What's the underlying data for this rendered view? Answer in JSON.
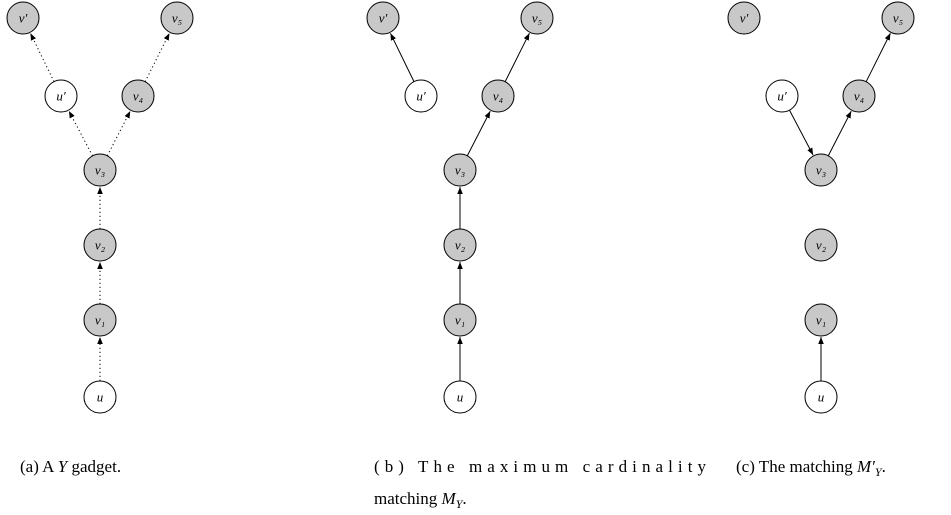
{
  "nodes": [
    {
      "label": "v′",
      "filled": true
    },
    {
      "label": "v₅",
      "filled": true
    },
    {
      "label": "u′",
      "filled": false
    },
    {
      "label": "v₄",
      "filled": true
    },
    {
      "label": "v₃",
      "filled": true
    },
    {
      "label": "v₂",
      "filled": true
    },
    {
      "label": "v₁",
      "filled": true
    },
    {
      "label": "u",
      "filled": false
    }
  ],
  "panels": [
    {
      "dotted": true,
      "edges": [
        [
          7,
          6
        ],
        [
          6,
          5
        ],
        [
          5,
          4
        ],
        [
          4,
          3
        ],
        [
          3,
          1
        ],
        [
          4,
          2
        ],
        [
          2,
          0
        ]
      ],
      "caption": [
        [
          {
            "t": "(a) A "
          },
          {
            "t": "Y",
            "math": true
          },
          {
            "t": " gadget."
          }
        ]
      ]
    },
    {
      "dotted": false,
      "edges": [
        [
          7,
          6
        ],
        [
          6,
          5
        ],
        [
          5,
          4
        ],
        [
          4,
          3
        ],
        [
          3,
          1
        ],
        [
          2,
          0
        ]
      ],
      "caption": [
        [
          {
            "t": "(b)  The  maximum  cardinality"
          }
        ],
        [
          {
            "t": "matching "
          },
          {
            "t": "M",
            "math": true
          },
          {
            "t": "Y",
            "math": true,
            "sub": true
          },
          {
            "t": "."
          }
        ]
      ]
    },
    {
      "dotted": false,
      "edges": [
        [
          7,
          6
        ],
        [
          4,
          3
        ],
        [
          3,
          1
        ],
        [
          2,
          4
        ]
      ],
      "caption": [
        [
          {
            "t": "(c) The matching "
          },
          {
            "t": "M′",
            "math": true
          },
          {
            "t": "Y",
            "math": true,
            "sub": true
          },
          {
            "t": "."
          }
        ]
      ]
    }
  ]
}
